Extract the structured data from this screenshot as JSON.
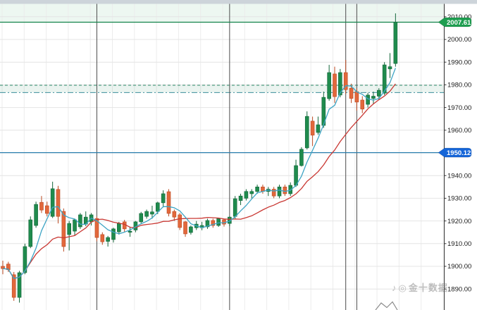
{
  "watermark": {
    "icon1": "♪",
    "icon2": "◎",
    "text": "金十数据"
  },
  "axis": {
    "tick_labels": [
      "2010.00",
      "2000.00",
      "1990.00",
      "1980.00",
      "1970.00",
      "1960.00",
      "1950.00",
      "1940.00",
      "1930.00",
      "1920.00",
      "1910.00",
      "1900.00",
      "1890.00"
    ],
    "current_price_label": "2007.61",
    "level_price_label": "1950.12"
  },
  "chart_data": {
    "type": "candlestick",
    "title": "",
    "description": "Gold price intraday candlestick chart with fast (teal) and slow (red) moving averages, a current-price line at 2007.61, a horizontal level at 1950.12 and a dashed resistance zone near 1977-1980.",
    "y_axis": {
      "min": 1884,
      "max": 2016,
      "tick_interval": 10,
      "tick_labels": [
        "2010.00",
        "2000.00",
        "1990.00",
        "1980.00",
        "1970.00",
        "1960.00",
        "1950.00",
        "1940.00",
        "1930.00",
        "1920.00",
        "1910.00",
        "1900.00",
        "1890.00"
      ]
    },
    "grid": true,
    "legend": false,
    "candles_ohlc": [
      [
        1900,
        1902.5,
        1896.5,
        1899
      ],
      [
        1901,
        1902,
        1897.5,
        1898.5
      ],
      [
        1896.3,
        1897.5,
        1884.8,
        1886.3
      ],
      [
        1886.3,
        1898,
        1884,
        1897.2
      ],
      [
        1897.2,
        1910,
        1896.5,
        1908.7
      ],
      [
        1908.7,
        1922,
        1908,
        1920.5
      ],
      [
        1918,
        1928.5,
        1917,
        1927.3
      ],
      [
        1928.2,
        1931,
        1923.5,
        1924.8
      ],
      [
        1926.7,
        1928.5,
        1922,
        1923.3
      ],
      [
        1922,
        1937.3,
        1921.3,
        1934.2
      ],
      [
        1933.9,
        1935.5,
        1918.9,
        1922
      ],
      [
        1924.2,
        1925.5,
        1906.5,
        1908.7
      ],
      [
        1914,
        1920,
        1907,
        1918.9
      ],
      [
        1915.5,
        1921,
        1913.5,
        1920.5
      ],
      [
        1917.4,
        1923.5,
        1916.5,
        1922.7
      ],
      [
        1918.6,
        1924.2,
        1917.7,
        1921.7
      ],
      [
        1919.6,
        1923.5,
        1918,
        1922.7
      ],
      [
        1921.1,
        1922,
        1911,
        1912.7
      ],
      [
        1914,
        1915,
        1909.5,
        1910.8
      ],
      [
        1911,
        1913.4,
        1908.7,
        1912.7
      ],
      [
        1911.8,
        1917,
        1910.5,
        1916.5
      ],
      [
        1915.2,
        1919.6,
        1914,
        1918.9
      ],
      [
        1919.6,
        1920.5,
        1915,
        1916.5
      ],
      [
        1915,
        1917.5,
        1913,
        1915.5
      ],
      [
        1916,
        1920,
        1915,
        1919.6
      ],
      [
        1919.6,
        1924,
        1919,
        1923.3
      ],
      [
        1922,
        1925,
        1921,
        1924.2
      ],
      [
        1923,
        1926.7,
        1921,
        1924
      ],
      [
        1924.2,
        1928.5,
        1923,
        1928
      ],
      [
        1928,
        1933.5,
        1926,
        1932
      ],
      [
        1932.9,
        1934,
        1922,
        1923.3
      ],
      [
        1924.2,
        1925,
        1920,
        1921.7
      ],
      [
        1922.7,
        1923.5,
        1916,
        1917.1
      ],
      [
        1919.6,
        1920,
        1913,
        1914.3
      ],
      [
        1914.9,
        1918,
        1914,
        1917.4
      ],
      [
        1917,
        1920,
        1916,
        1918.6
      ],
      [
        1917,
        1919.6,
        1915.9,
        1918
      ],
      [
        1917.4,
        1921,
        1916.5,
        1920.2
      ],
      [
        1920.2,
        1921,
        1917,
        1918
      ],
      [
        1918,
        1921.1,
        1917.4,
        1921.1
      ],
      [
        1920.5,
        1921,
        1917.5,
        1918.6
      ],
      [
        1918.9,
        1922,
        1917.7,
        1921.7
      ],
      [
        1922,
        1931,
        1921,
        1929.8
      ],
      [
        1929,
        1932,
        1927,
        1931
      ],
      [
        1930,
        1934,
        1929,
        1933
      ],
      [
        1932,
        1934,
        1930,
        1933
      ],
      [
        1933,
        1936,
        1932,
        1935
      ],
      [
        1935,
        1936,
        1932,
        1933
      ],
      [
        1933,
        1935,
        1931,
        1934
      ],
      [
        1934,
        1935,
        1930,
        1931
      ],
      [
        1931,
        1936,
        1930,
        1935
      ],
      [
        1935,
        1936,
        1931,
        1932
      ],
      [
        1932,
        1937,
        1931,
        1935.7
      ],
      [
        1935.7,
        1947,
        1935,
        1944.4
      ],
      [
        1944.4,
        1952.5,
        1944,
        1951.6
      ],
      [
        1952.2,
        1968.3,
        1951.5,
        1966.1
      ],
      [
        1964,
        1966,
        1953,
        1957.8
      ],
      [
        1959,
        1966,
        1958,
        1962.4
      ],
      [
        1962.1,
        1977,
        1961,
        1974.5
      ],
      [
        1973.9,
        1988.8,
        1973,
        1985.4
      ],
      [
        1984.8,
        1988,
        1972,
        1974.8
      ],
      [
        1975.5,
        1987,
        1974.5,
        1985.4
      ],
      [
        1985.4,
        1991,
        1976,
        1977.9
      ],
      [
        1978.5,
        1980.5,
        1972,
        1974
      ],
      [
        1977,
        1978.5,
        1968.6,
        1972.4
      ],
      [
        1973.3,
        1975,
        1967.5,
        1969.3
      ],
      [
        1971.4,
        1976.5,
        1970,
        1975.5
      ],
      [
        1974,
        1977,
        1971.5,
        1975
      ],
      [
        1975,
        1978.5,
        1973.5,
        1977.6
      ],
      [
        1976.3,
        1990,
        1975.5,
        1988.8
      ],
      [
        1987,
        1994,
        1983,
        1988
      ],
      [
        1989.4,
        2011.5,
        1988,
        2007.61
      ]
    ],
    "ma_fast": {
      "period": 5,
      "color": "#3da4c4"
    },
    "ma_slow": {
      "period": 14,
      "color": "#c93732"
    },
    "levels": {
      "current_price": {
        "value": 2007.61,
        "style": "solid",
        "color": "#12834a",
        "badge_color": "#1e9e50"
      },
      "support_line": {
        "value": 1950.12,
        "style": "solid",
        "color": "#2b7fae",
        "badge_color": "#1565d8"
      },
      "zone_top": {
        "value": 1979.8,
        "style": "dashed",
        "color": "#2e8b6a"
      },
      "zone_bottom": {
        "value": 1976.6,
        "style": "dashdot",
        "color": "#3b8f9b"
      }
    },
    "zone_fill": "rgba(60,150,110,0.10)",
    "band_above_current_fill": "#edf7f1",
    "session_separator_indices": [
      17,
      41,
      62,
      64
    ],
    "colors": {
      "bull": "#1f8b4d",
      "bull_stroke": "#14663a",
      "bear": "#e2683c",
      "bear_stroke": "#bc4a22",
      "grid_h": "#e4e4e4",
      "grid_v": "#ececec",
      "separator": "#4d4d4d",
      "axis_line": "#333333",
      "axis_text": "#1a1a1a",
      "window_bar": "#cdd4da"
    }
  }
}
